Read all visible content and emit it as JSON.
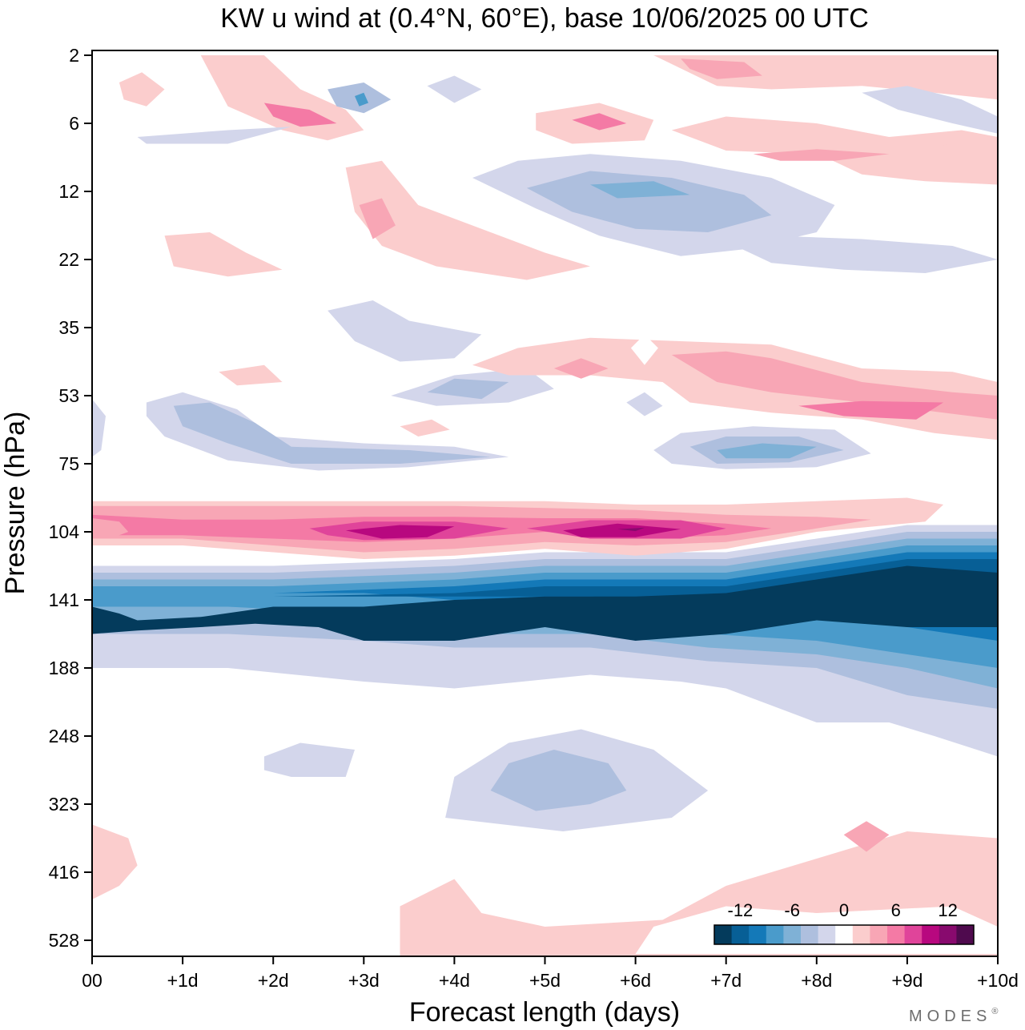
{
  "chart_data": {
    "type": "heatmap",
    "title": "KW u wind at (0.4°N, 60°E),  base 10/06/2025  00 UTC",
    "xlabel": "Forecast length (days)",
    "ylabel": "Pressure (hPa)",
    "x_ticks": [
      "00",
      "+1d",
      "+2d",
      "+3d",
      "+4d",
      "+5d",
      "+6d",
      "+7d",
      "+8d",
      "+9d",
      "+10d"
    ],
    "y_ticks": [
      "2",
      "6",
      "12",
      "22",
      "35",
      "53",
      "75",
      "104",
      "141",
      "188",
      "248",
      "323",
      "416",
      "528"
    ],
    "xlim": [
      0,
      10
    ],
    "ylim": [
      2,
      600
    ],
    "colorbar": {
      "labels": [
        "-12",
        "-6",
        "0",
        "6",
        "12"
      ],
      "colors": [
        "#043b5c",
        "#075f96",
        "#1479b8",
        "#4a9bcb",
        "#7fb1d6",
        "#aebfde",
        "#d3d6eb",
        "#ffffff",
        "#fbcdcd",
        "#f8a6b5",
        "#f47aa5",
        "#e0449a",
        "#b8087f",
        "#880a6e",
        "#4f0a4e"
      ]
    },
    "features": [
      {
        "kind": "band",
        "level": "strong negative",
        "days": [
          0,
          10
        ],
        "pressure_hPa": [
          125,
          175
        ],
        "note": "deep easterly core around 141 hPa"
      },
      {
        "kind": "band",
        "level": "strong positive",
        "days": [
          0,
          7.5
        ],
        "pressure_hPa": [
          90,
          112
        ],
        "note": "westerly band near 104 hPa, peak at +3.5d and +6d"
      },
      {
        "kind": "patch",
        "level": "moderate negative",
        "days": [
          4.5,
          7
        ],
        "pressure_hPa": [
          260,
          330
        ]
      },
      {
        "kind": "patch",
        "level": "weak positive",
        "days": [
          6.5,
          10
        ],
        "pressure_hPa": [
          340,
          600
        ]
      }
    ]
  },
  "branding": {
    "logo_text": "MODES",
    "mark": "®"
  }
}
